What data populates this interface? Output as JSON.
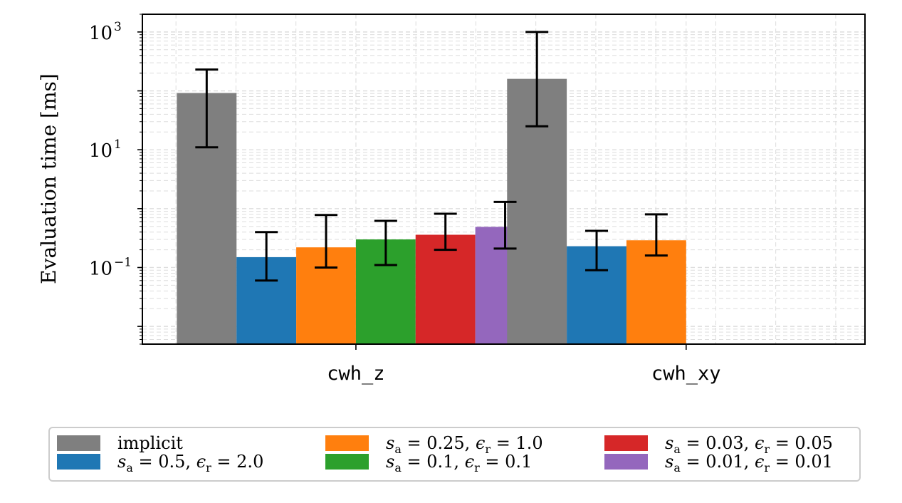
{
  "chart_data": {
    "type": "bar",
    "ylabel": "Evaluation time [ms]",
    "xlabel": "",
    "yscale": "log",
    "ylim": [
      0.005,
      2000
    ],
    "yticks": [
      {
        "value": 0.1,
        "base": "10",
        "exp": "−1"
      },
      {
        "value": 10,
        "base": "10",
        "exp": "1"
      },
      {
        "value": 1000,
        "base": "10",
        "exp": "3"
      }
    ],
    "grid": true,
    "legend_position": "bottom",
    "categories": [
      "cwh_z",
      "cwh_xy"
    ],
    "series": [
      {
        "name": "implicit",
        "color": "#7f7f7f",
        "values": [
          92,
          160
        ],
        "err_low": [
          11,
          25
        ],
        "err_high": [
          230,
          1000
        ]
      },
      {
        "name": "s_a = 0.5,  ϵ_r = 2.0",
        "color": "#1f77b4",
        "values": [
          0.15,
          0.23
        ],
        "err_low": [
          0.06,
          0.09
        ],
        "err_high": [
          0.4,
          0.42
        ]
      },
      {
        "name": "s_a = 0.25,  ϵ_r = 1.0",
        "color": "#ff7f0e",
        "values": [
          0.22,
          0.29
        ],
        "err_low": [
          0.1,
          0.16
        ],
        "err_high": [
          0.78,
          0.8
        ]
      },
      {
        "name": "s_a = 0.1,  ϵ_r = 0.1",
        "color": "#2ca02c",
        "values": [
          0.3,
          null
        ],
        "err_low": [
          0.11,
          null
        ],
        "err_high": [
          0.62,
          null
        ]
      },
      {
        "name": "s_a = 0.03,  ϵ_r = 0.05",
        "color": "#d62728",
        "values": [
          0.36,
          null
        ],
        "err_low": [
          0.2,
          null
        ],
        "err_high": [
          0.82,
          null
        ]
      },
      {
        "name": "s_a = 0.01,  ϵ_r = 0.01",
        "color": "#9467bd",
        "values": [
          0.49,
          null
        ],
        "err_low": [
          0.21,
          null
        ],
        "err_high": [
          1.3,
          null
        ]
      }
    ]
  },
  "legend": {
    "items": [
      {
        "sym": "",
        "sub1": "",
        "val1": "implicit",
        "sym2": "",
        "sub2": "",
        "val2": ""
      },
      {
        "sym": "s",
        "sub1": "a",
        "val1": " = 0.5,",
        "sym2": "ϵ",
        "sub2": "r",
        "val2": " = 2.0"
      },
      {
        "sym": "s",
        "sub1": "a",
        "val1": " = 0.25,",
        "sym2": "ϵ",
        "sub2": "r",
        "val2": " = 1.0"
      },
      {
        "sym": "s",
        "sub1": "a",
        "val1": " = 0.1,",
        "sym2": "ϵ",
        "sub2": "r",
        "val2": " = 0.1"
      },
      {
        "sym": "s",
        "sub1": "a",
        "val1": " = 0.03,",
        "sym2": "ϵ",
        "sub2": "r",
        "val2": " = 0.05"
      },
      {
        "sym": "s",
        "sub1": "a",
        "val1": " = 0.01,",
        "sym2": "ϵ",
        "sub2": "r",
        "val2": " = 0.01"
      }
    ]
  }
}
